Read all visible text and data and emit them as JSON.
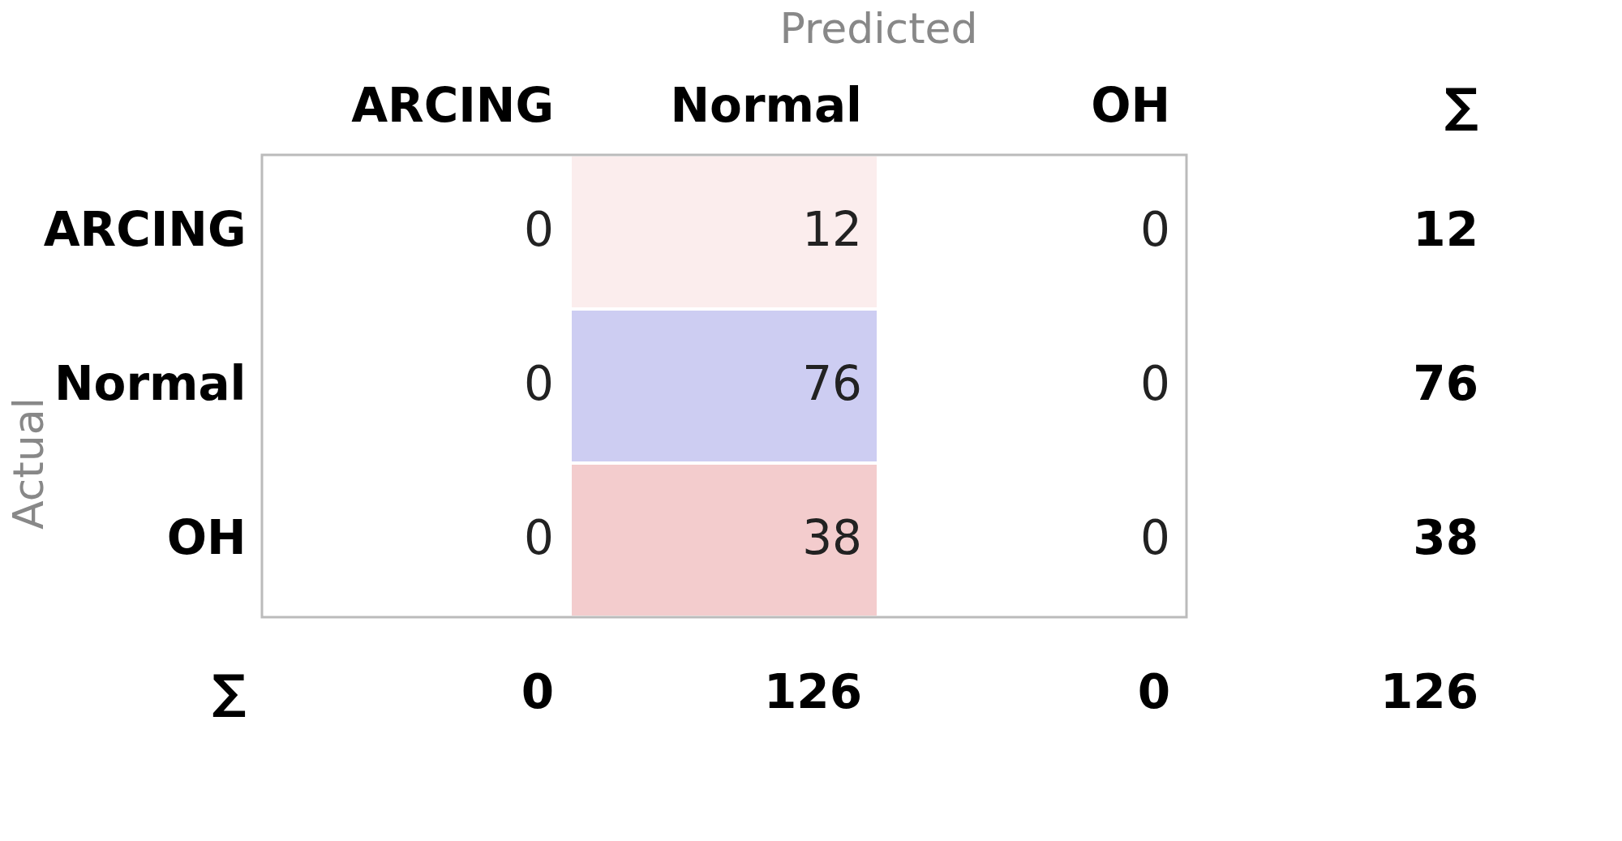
{
  "chart_data": {
    "type": "heatmap",
    "data_labels": true,
    "xlabel": "Predicted",
    "ylabel": "Actual",
    "categories": [
      "ARCING",
      "Normal",
      "OH",
      "∑"
    ],
    "y_categories": [
      "ARCING",
      "Normal",
      "OH",
      "∑"
    ],
    "cells": [
      [
        0,
        12,
        0,
        12
      ],
      [
        0,
        76,
        0,
        76
      ],
      [
        0,
        38,
        0,
        38
      ],
      [
        0,
        126,
        0,
        126
      ]
    ],
    "colors": [
      [
        null,
        "#fbeded",
        null,
        null
      ],
      [
        null,
        "#cdcdf2",
        null,
        null
      ],
      [
        null,
        "#f3cccd",
        null,
        null
      ],
      [
        null,
        null,
        null,
        null
      ]
    ]
  }
}
